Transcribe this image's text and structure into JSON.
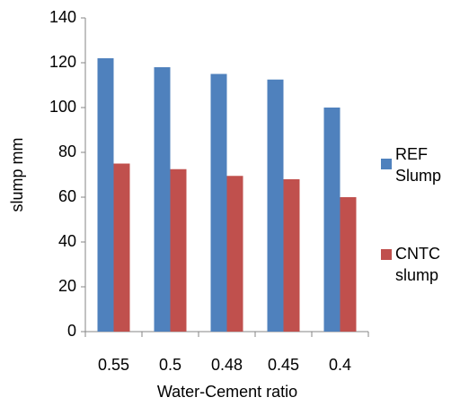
{
  "chart_data": {
    "type": "bar",
    "x_label": "Water-Cement ratio",
    "y_label": "slump mm",
    "categories": [
      "0.55",
      "0.5",
      "0.48",
      "0.45",
      "0.4"
    ],
    "series": [
      {
        "name": "REF Slump",
        "color": "#4f81bd",
        "values": [
          122,
          118,
          115,
          112.5,
          100
        ]
      },
      {
        "name": "CNTC slump",
        "color": "#c0504d",
        "values": [
          75,
          72.5,
          69.5,
          68,
          60
        ]
      }
    ],
    "ylim": [
      0,
      140
    ],
    "yticks": [
      0,
      20,
      40,
      60,
      80,
      100,
      120,
      140
    ],
    "grid": false,
    "legend": "right"
  }
}
